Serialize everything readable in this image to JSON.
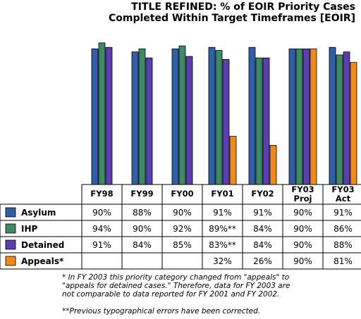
{
  "chart_data": {
    "type": "bar",
    "title_line1": "TITLE REFINED: % of EOIR Priority Cases",
    "title_line2": "Completed Within Target Timeframes [EOIR]",
    "categories": [
      {
        "line1": "FY98",
        "line2": ""
      },
      {
        "line1": "FY99",
        "line2": ""
      },
      {
        "line1": "FY00",
        "line2": ""
      },
      {
        "line1": "FY01",
        "line2": ""
      },
      {
        "line1": "FY02",
        "line2": ""
      },
      {
        "line1": "FY03",
        "line2": "Proj"
      },
      {
        "line1": "FY03",
        "line2": "Act"
      }
    ],
    "ylim": [
      0,
      100
    ],
    "series": [
      {
        "name": "Asylum",
        "color": "#2e5fa8",
        "values": [
          90,
          88,
          90,
          91,
          91,
          90,
          91
        ],
        "labels": [
          "90%",
          "88%",
          "90%",
          "91%",
          "91%",
          "90%",
          "91%"
        ]
      },
      {
        "name": "IHP",
        "color": "#3f8a66",
        "values": [
          94,
          90,
          92,
          89,
          84,
          90,
          86
        ],
        "labels": [
          "94%",
          "90%",
          "92%",
          "89%**",
          "84%",
          "90%",
          "86%"
        ]
      },
      {
        "name": "Detained",
        "color": "#5b3fb0",
        "values": [
          91,
          84,
          85,
          83,
          84,
          90,
          88
        ],
        "labels": [
          "91%",
          "84%",
          "85%",
          "83%**",
          "84%",
          "90%",
          "88%"
        ]
      },
      {
        "name": "Appeals*",
        "color": "#f08a1a",
        "values": [
          null,
          null,
          null,
          32,
          26,
          90,
          81
        ],
        "labels": [
          "",
          "",
          "",
          "32%",
          "26%",
          "90%",
          "81%"
        ]
      }
    ]
  },
  "footnotes": {
    "note1_line1": "* In FY 2003 this priority category changed from \"appeals\" to",
    "note1_line2": "\"appeals for detained cases.\" Therefore, data for FY 2003 are",
    "note1_line3": "not comparable to data reported for FY 2001 and FY 2002.",
    "note2": "**Previous typographical errors have been corrected."
  }
}
